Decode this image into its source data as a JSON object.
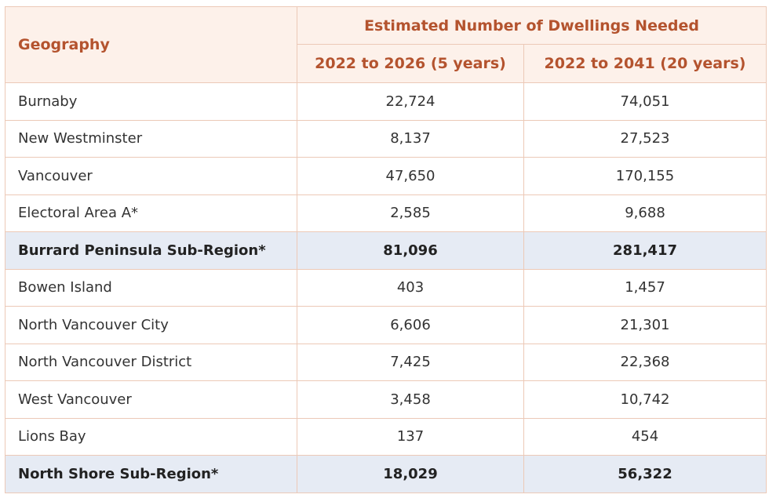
{
  "table": {
    "header": {
      "geography": "Geography",
      "group": "Estimated Number of Dwellings Needed",
      "columns": [
        "2022 to 2026 (5 years)",
        "2022 to 2041 (20 years)"
      ]
    },
    "rows": [
      {
        "cells": [
          "Burnaby",
          "22,724",
          "74,051"
        ]
      },
      {
        "cells": [
          "New Westminster",
          "8,137",
          "27,523"
        ]
      },
      {
        "cells": [
          "Vancouver",
          "47,650",
          "170,155"
        ]
      },
      {
        "cells": [
          "Electoral Area A*",
          "2,585",
          "9,688"
        ]
      },
      {
        "cells": [
          "Burrard Peninsula Sub-Region*",
          "81,096",
          "281,417"
        ],
        "subtotal": true
      },
      {
        "cells": [
          "Bowen Island",
          "403",
          "1,457"
        ]
      },
      {
        "cells": [
          "North Vancouver City",
          "6,606",
          "21,301"
        ]
      },
      {
        "cells": [
          "North Vancouver District",
          "7,425",
          "22,368"
        ]
      },
      {
        "cells": [
          "West Vancouver",
          "3,458",
          "10,742"
        ]
      },
      {
        "cells": [
          "Lions Bay",
          "137",
          "454"
        ]
      },
      {
        "cells": [
          "North Shore Sub-Region*",
          "18,029",
          "56,322"
        ],
        "subtotal": true
      }
    ]
  }
}
